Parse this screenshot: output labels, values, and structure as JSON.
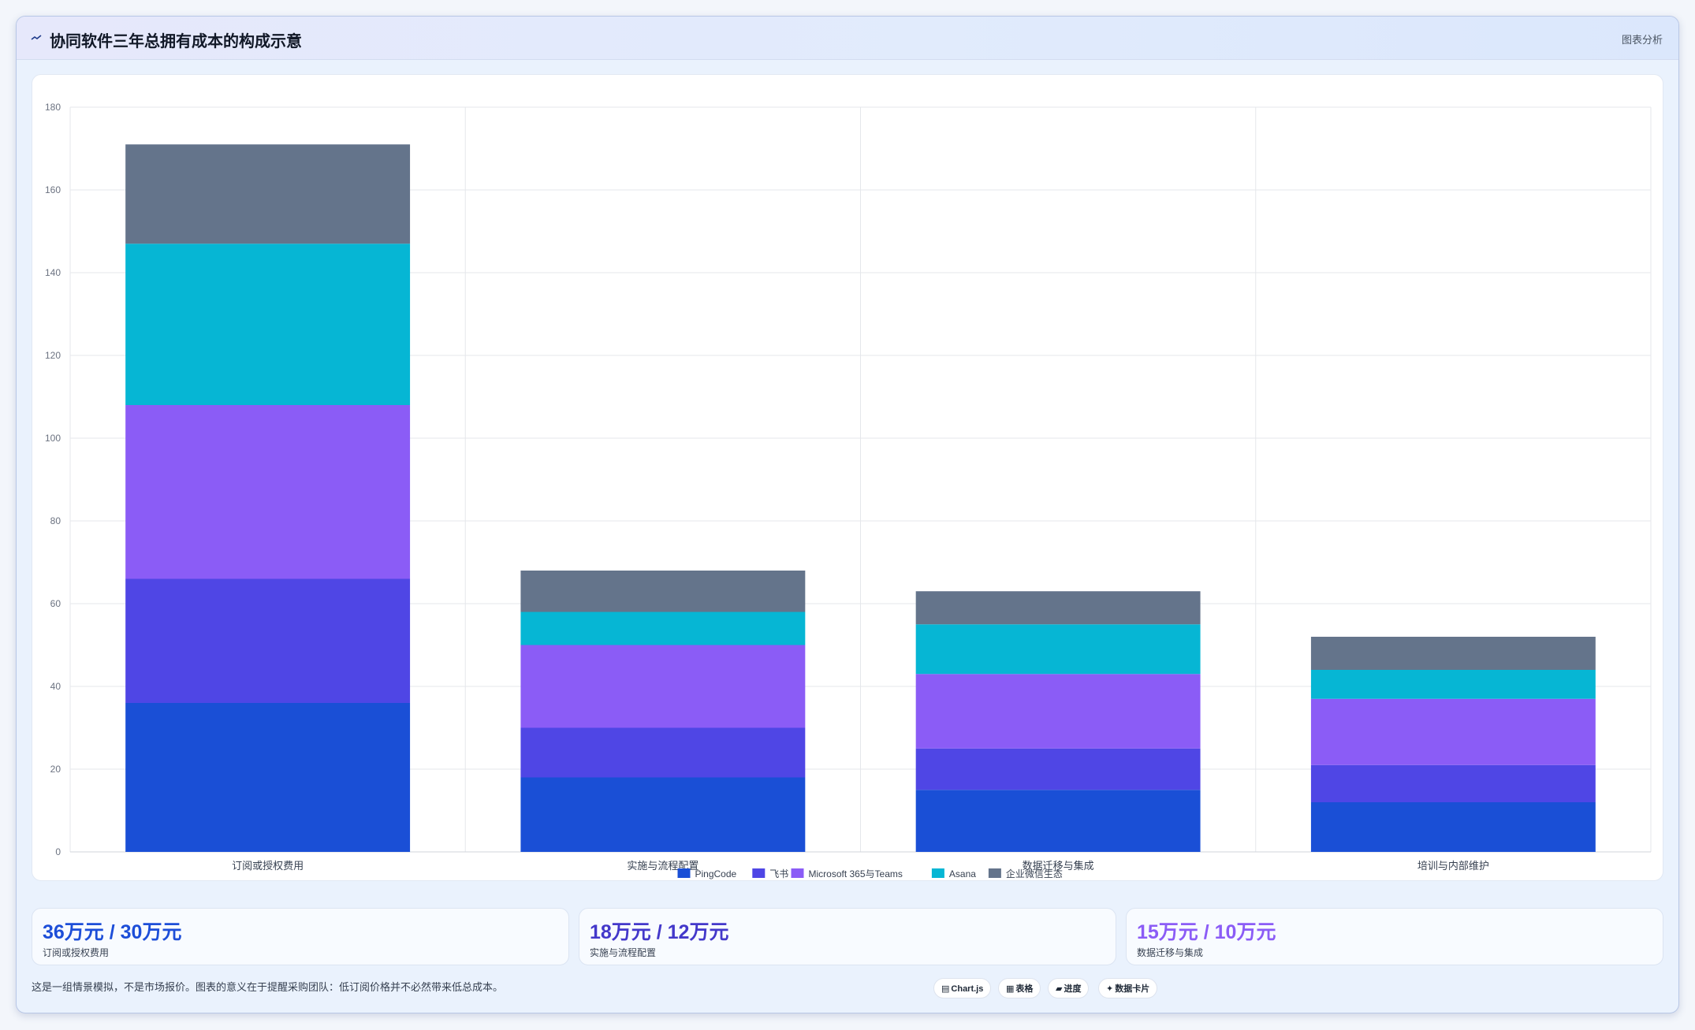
{
  "header": {
    "title": "协同软件三年总拥有成本的构成示意",
    "tag": "图表分析"
  },
  "colors": {
    "pingcode": "#1a4fd6",
    "feishu": "#4f46e5",
    "microsoft": "#8b5cf6",
    "asana": "#06b6d4",
    "wecom": "#64748b"
  },
  "chart_data": {
    "type": "bar",
    "stacked": true,
    "title": "",
    "xlabel": "",
    "ylabel": "",
    "ylim": [
      0,
      180
    ],
    "yticks": [
      0,
      20,
      40,
      60,
      80,
      100,
      120,
      140,
      160,
      180
    ],
    "grid": true,
    "legend_position": "bottom",
    "categories": [
      "订阅或授权费用",
      "实施与流程配置",
      "数据迁移与集成",
      "培训与内部维护"
    ],
    "series": [
      {
        "name": "PingCode",
        "color": "#1a4fd6",
        "values": [
          36,
          18,
          15,
          12
        ]
      },
      {
        "name": "飞书",
        "color": "#4f46e5",
        "values": [
          30,
          12,
          10,
          9
        ]
      },
      {
        "name": "Microsoft 365与Teams",
        "color": "#8b5cf6",
        "values": [
          42,
          20,
          18,
          16
        ]
      },
      {
        "name": "Asana",
        "color": "#06b6d4",
        "values": [
          39,
          8,
          12,
          7
        ]
      },
      {
        "name": "企业微信生态",
        "color": "#64748b",
        "values": [
          24,
          10,
          8,
          8
        ]
      }
    ]
  },
  "stats": [
    {
      "value": "36万元 / 30万元",
      "label": "订阅或授权费用",
      "color": "#1d4ed8"
    },
    {
      "value": "18万元 / 12万元",
      "label": "实施与流程配置",
      "color": "#4338ca"
    },
    {
      "value": "15万元 / 10万元",
      "label": "数据迁移与集成",
      "color": "#8b5cf6"
    }
  ],
  "footnote": "这是一组情景模拟，不是市场报价。图表的意义在于提醒采购团队：低订阅价格并不必然带来低总成本。",
  "chips": [
    {
      "icon": "▤",
      "label": "Chart.js"
    },
    {
      "icon": "▦",
      "label": "表格"
    },
    {
      "icon": "▰",
      "label": "进度"
    },
    {
      "icon": "✦",
      "label": "数据卡片"
    }
  ]
}
